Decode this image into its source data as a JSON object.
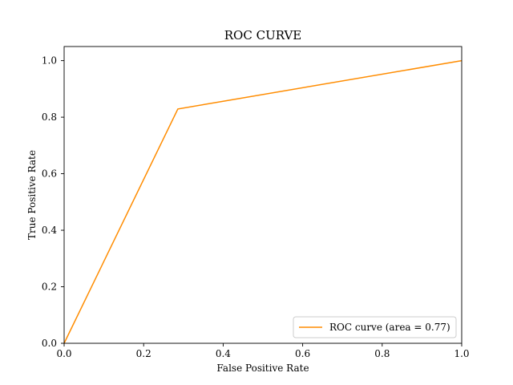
{
  "chart_data": {
    "type": "line",
    "title": "ROC CURVE",
    "xlabel": "False Positive Rate",
    "ylabel": "True Positive Rate",
    "xlim": [
      0.0,
      1.0
    ],
    "ylim": [
      0.0,
      1.05
    ],
    "x_ticks": [
      "0.0",
      "0.2",
      "0.4",
      "0.6",
      "0.8",
      "1.0"
    ],
    "y_ticks": [
      "0.0",
      "0.2",
      "0.4",
      "0.6",
      "0.8",
      "1.0"
    ],
    "grid": false,
    "legend_position": "lower-right",
    "series": [
      {
        "name": "ROC curve (area = 0.77)",
        "color": "#ff8c00",
        "x": [
          0.0,
          0.286,
          1.0
        ],
        "y": [
          0.0,
          0.829,
          1.0
        ]
      }
    ]
  }
}
